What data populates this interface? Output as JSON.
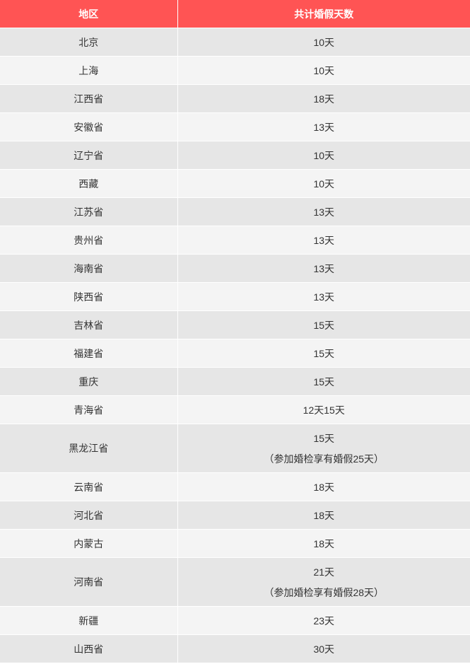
{
  "table": {
    "headers": [
      "地区",
      "共计婚假天数"
    ],
    "header_color": "#ff5454",
    "rows": [
      {
        "region": "北京",
        "days": "10天"
      },
      {
        "region": "上海",
        "days": "10天"
      },
      {
        "region": "江西省",
        "days": "18天"
      },
      {
        "region": "安徽省",
        "days": "13天"
      },
      {
        "region": "辽宁省",
        "days": "10天"
      },
      {
        "region": "西藏",
        "days": "10天"
      },
      {
        "region": "江苏省",
        "days": "13天"
      },
      {
        "region": "贵州省",
        "days": "13天"
      },
      {
        "region": "海南省",
        "days": "13天"
      },
      {
        "region": "陕西省",
        "days": "13天"
      },
      {
        "region": "吉林省",
        "days": "15天"
      },
      {
        "region": "福建省",
        "days": "15天"
      },
      {
        "region": "重庆",
        "days": "15天"
      },
      {
        "region": "青海省",
        "days": "12天15天"
      },
      {
        "region": "黑龙江省",
        "days": "15天",
        "note": "（参加婚检享有婚假25天）"
      },
      {
        "region": "云南省",
        "days": "18天"
      },
      {
        "region": "河北省",
        "days": "18天"
      },
      {
        "region": "内蒙古",
        "days": "18天"
      },
      {
        "region": "河南省",
        "days": "21天",
        "note": "（参加婚检享有婚假28天）"
      },
      {
        "region": "新疆",
        "days": "23天"
      },
      {
        "region": "山西省",
        "days": "30天"
      }
    ]
  }
}
